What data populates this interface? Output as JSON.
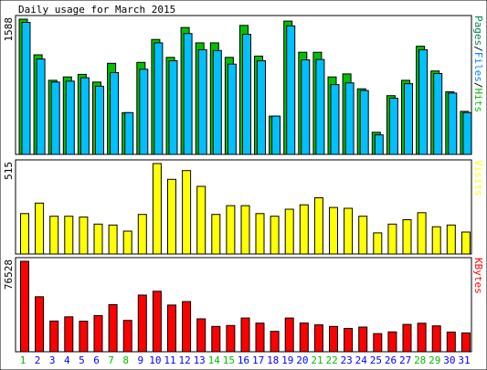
{
  "chart_data": {
    "type": "bar",
    "title": "Daily usage for March 2015",
    "categories": [
      "1",
      "2",
      "3",
      "4",
      "5",
      "6",
      "7",
      "8",
      "9",
      "10",
      "11",
      "12",
      "13",
      "14",
      "15",
      "16",
      "17",
      "18",
      "19",
      "20",
      "21",
      "22",
      "23",
      "24",
      "25",
      "26",
      "27",
      "28",
      "29",
      "30",
      "31"
    ],
    "weekend_days": [
      "1",
      "7",
      "8",
      "14",
      "15",
      "21",
      "22",
      "28",
      "29"
    ],
    "panels": [
      {
        "id": "top",
        "ymax_label": "1588",
        "ylim": [
          0,
          1588
        ],
        "legend": [
          {
            "text": "Pages",
            "color": "#00805C"
          },
          {
            "text": "Files",
            "color": "#0080FF"
          },
          {
            "text": "Hits",
            "color": "#00C000"
          }
        ],
        "legend_separator": "/",
        "series": [
          {
            "name": "Hits",
            "color": "#00C000",
            "values": [
              1588,
              1170,
              870,
              910,
              940,
              850,
              1070,
              490,
              1080,
              1350,
              1140,
              1490,
              1310,
              1310,
              1140,
              1515,
              1155,
              450,
              1565,
              1200,
              1200,
              910,
              945,
              770,
              260,
              690,
              870,
              1270,
              980,
              735,
              505
            ]
          },
          {
            "name": "Files",
            "color": "#00C0FF",
            "values": [
              1550,
              1120,
              850,
              860,
              900,
              800,
              960,
              490,
              1000,
              1310,
              1100,
              1420,
              1230,
              1220,
              1060,
              1410,
              1100,
              450,
              1510,
              1110,
              1115,
              820,
              840,
              750,
              230,
              660,
              830,
              1230,
              950,
              720,
              490
            ]
          },
          {
            "name": "Pages",
            "color": "#00805C",
            "values": [
              0,
              0,
              0,
              0,
              0,
              0,
              0,
              0,
              0,
              0,
              0,
              0,
              0,
              0,
              0,
              0,
              0,
              0,
              0,
              0,
              0,
              0,
              0,
              0,
              0,
              0,
              0,
              0,
              0,
              0,
              0
            ]
          }
        ]
      },
      {
        "id": "middle",
        "ymax_label": "515",
        "ylim": [
          0,
          515
        ],
        "legend": [
          {
            "text": "Visits",
            "color": "#FFFF00"
          }
        ],
        "series": [
          {
            "name": "Visits",
            "color": "#FFFF00",
            "values": [
              230,
              290,
              215,
              215,
              210,
              170,
              165,
              130,
              225,
              515,
              425,
              475,
              385,
              225,
              275,
              275,
              230,
              215,
              255,
              280,
              320,
              265,
              260,
              215,
              120,
              170,
              195,
              235,
              155,
              165,
              125
            ]
          }
        ]
      },
      {
        "id": "bottom",
        "ymax_label": "76528",
        "ylim": [
          0,
          76528
        ],
        "legend": [
          {
            "text": "KBytes",
            "color": "#FF0000"
          }
        ],
        "series": [
          {
            "name": "KBytes",
            "color": "#FF0000",
            "values": [
              76528,
              46500,
              26000,
              29500,
              25800,
              30600,
              39800,
              26500,
              47900,
              51200,
              39500,
              42400,
              27800,
              21400,
              22200,
              28500,
              24200,
              17200,
              28500,
              24300,
              22700,
              21400,
              19700,
              20900,
              15300,
              16800,
              23100,
              24100,
              21900,
              16600,
              15900
            ]
          }
        ]
      }
    ]
  },
  "colors": {
    "background": "#FFFFFF",
    "frame": "#000000",
    "panel_background": "#FFFFFF",
    "axis_tick_weekday": "#0000FF",
    "axis_tick_weekend": "#00C000"
  }
}
